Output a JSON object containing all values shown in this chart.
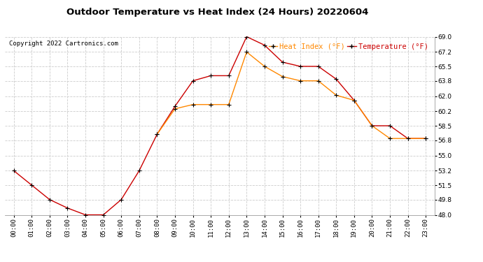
{
  "title": "Outdoor Temperature vs Heat Index (24 Hours) 20220604",
  "copyright": "Copyright 2022 Cartronics.com",
  "legend_heat": "Heat Index (°F)",
  "legend_temp": "Temperature (°F)",
  "hours": [
    "00:00",
    "01:00",
    "02:00",
    "03:00",
    "04:00",
    "05:00",
    "06:00",
    "07:00",
    "08:00",
    "09:00",
    "10:00",
    "11:00",
    "12:00",
    "13:00",
    "14:00",
    "15:00",
    "16:00",
    "17:00",
    "18:00",
    "19:00",
    "20:00",
    "21:00",
    "22:00",
    "23:00"
  ],
  "temperature": [
    53.2,
    51.5,
    49.8,
    48.8,
    48.0,
    48.0,
    49.8,
    53.2,
    57.5,
    60.8,
    63.8,
    64.4,
    64.4,
    69.0,
    68.0,
    66.0,
    65.5,
    65.5,
    64.0,
    61.5,
    58.5,
    58.5,
    57.0,
    57.0
  ],
  "heat_index": [
    null,
    null,
    null,
    null,
    null,
    null,
    null,
    null,
    57.5,
    60.5,
    61.0,
    61.0,
    61.0,
    67.2,
    65.5,
    64.3,
    63.8,
    63.8,
    62.1,
    61.5,
    58.5,
    57.0,
    57.0,
    57.0
  ],
  "ylim": [
    48.0,
    69.0
  ],
  "yticks": [
    48.0,
    49.8,
    51.5,
    53.2,
    55.0,
    56.8,
    58.5,
    60.2,
    62.0,
    63.8,
    65.5,
    67.2,
    69.0
  ],
  "temp_color": "#cc0000",
  "heat_color": "#ff8800",
  "marker_color": "black",
  "bg_color": "#ffffff",
  "grid_color": "#cccccc",
  "title_fontsize": 9.5,
  "copyright_fontsize": 6.5,
  "legend_fontsize": 7.5,
  "tick_fontsize": 6.5
}
